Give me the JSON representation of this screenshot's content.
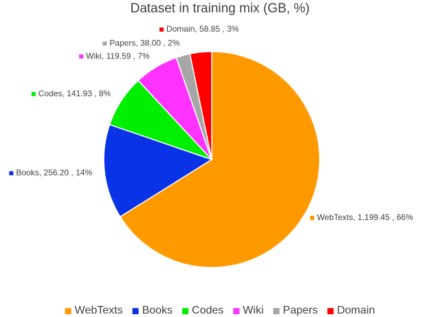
{
  "chart_data": {
    "type": "pie",
    "title": "Dataset in training mix (GB, %)",
    "categories": [
      "WebTexts",
      "Books",
      "Codes",
      "Wiki",
      "Papers",
      "Domain"
    ],
    "values": [
      1199.45,
      256.2,
      141.93,
      119.59,
      38.0,
      58.85
    ],
    "value_labels": [
      "WebTexts, 1,199.45 , 66%",
      "Books, 256.20 , 14%",
      "Codes, 141.93 , 8%",
      "Wiki, 119.59 , 7%",
      "Papers, 38.00 , 2%",
      "Domain, 58.85 , 3%"
    ],
    "colors": [
      "#ff9900",
      "#0a32e6",
      "#00ee00",
      "#ff33ff",
      "#a6a6a6",
      "#ff0000"
    ],
    "legend": "bottom"
  }
}
